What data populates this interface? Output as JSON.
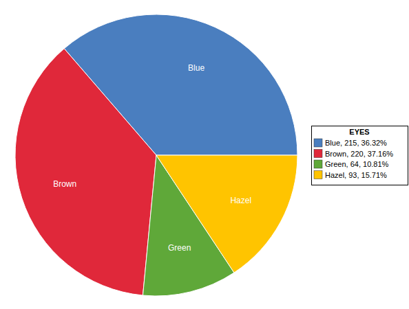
{
  "chart_data": {
    "type": "pie",
    "legend_title": "EYES",
    "categories": [
      "Blue",
      "Brown",
      "Green",
      "Hazel"
    ],
    "values": [
      215,
      220,
      64,
      93
    ],
    "legend_labels": [
      "Blue, 215, 36.32%",
      "Brown, 220, 37.16%",
      "Green, 64, 10.81%",
      "Hazel, 93, 15.71%"
    ],
    "colors": [
      "#4a7ebf",
      "#e0283a",
      "#5fa839",
      "#ffc400"
    ],
    "legend": "right"
  }
}
